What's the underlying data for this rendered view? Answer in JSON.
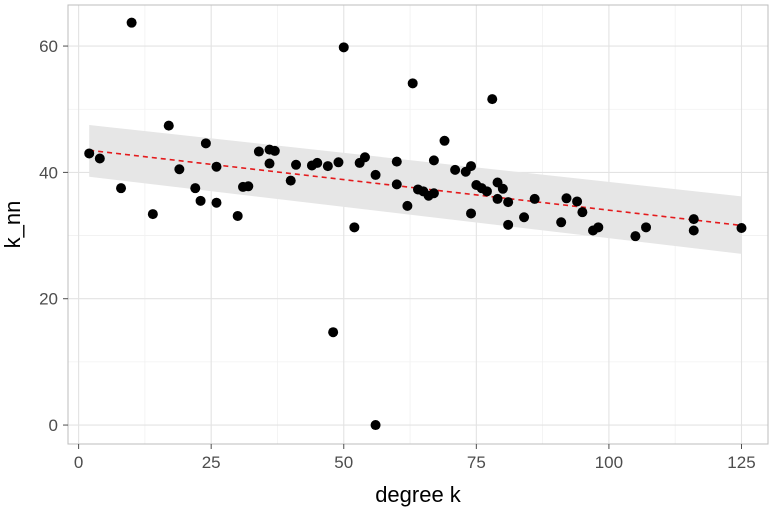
{
  "chart_data": {
    "type": "scatter",
    "title": "",
    "xlabel": "degree k",
    "ylabel": "k_nn",
    "xlim": [
      -2,
      130
    ],
    "ylim": [
      -3,
      66.5
    ],
    "x_ticks": [
      0,
      25,
      50,
      75,
      100,
      125
    ],
    "y_ticks": [
      0,
      20,
      40,
      60
    ],
    "grid": true,
    "series": [
      {
        "points": [
          [
            2,
            43.0
          ],
          [
            4,
            42.2
          ],
          [
            8,
            37.5
          ],
          [
            10,
            63.7
          ],
          [
            14,
            33.4
          ],
          [
            17,
            47.4
          ],
          [
            19,
            40.5
          ],
          [
            22,
            37.5
          ],
          [
            23,
            35.5
          ],
          [
            24,
            44.6
          ],
          [
            26,
            40.9
          ],
          [
            26,
            35.2
          ],
          [
            30,
            33.1
          ],
          [
            31,
            37.7
          ],
          [
            32,
            37.8
          ],
          [
            34,
            43.3
          ],
          [
            36,
            43.6
          ],
          [
            36,
            41.4
          ],
          [
            37,
            43.4
          ],
          [
            40,
            38.7
          ],
          [
            41,
            41.2
          ],
          [
            44,
            41.1
          ],
          [
            45,
            41.5
          ],
          [
            47,
            41.0
          ],
          [
            48,
            14.7
          ],
          [
            49,
            41.6
          ],
          [
            50,
            59.8
          ],
          [
            52,
            31.3
          ],
          [
            53,
            41.5
          ],
          [
            54,
            42.4
          ],
          [
            56,
            39.6
          ],
          [
            56,
            0.0
          ],
          [
            60,
            41.7
          ],
          [
            60,
            38.1
          ],
          [
            62,
            34.7
          ],
          [
            63,
            54.1
          ],
          [
            64,
            37.3
          ],
          [
            65,
            37.0
          ],
          [
            66,
            36.3
          ],
          [
            67,
            41.9
          ],
          [
            67,
            36.7
          ],
          [
            69,
            45.0
          ],
          [
            71,
            40.4
          ],
          [
            73,
            40.1
          ],
          [
            74,
            41.0
          ],
          [
            74,
            33.5
          ],
          [
            75,
            38.0
          ],
          [
            76,
            37.5
          ],
          [
            77,
            37.0
          ],
          [
            78,
            51.6
          ],
          [
            79,
            38.4
          ],
          [
            79,
            35.8
          ],
          [
            80,
            37.4
          ],
          [
            81,
            35.3
          ],
          [
            81,
            31.7
          ],
          [
            84,
            32.9
          ],
          [
            86,
            35.8
          ],
          [
            91,
            32.1
          ],
          [
            92,
            35.9
          ],
          [
            94,
            35.4
          ],
          [
            95,
            33.7
          ],
          [
            97,
            30.8
          ],
          [
            98,
            31.3
          ],
          [
            105,
            29.9
          ],
          [
            107,
            31.3
          ],
          [
            116,
            32.6
          ],
          [
            116,
            30.8
          ],
          [
            125,
            31.2
          ]
        ]
      }
    ],
    "trend_line": {
      "from": [
        2,
        43.5
      ],
      "to": [
        125,
        31.6
      ],
      "style": "dashed"
    },
    "confidence_band": {
      "upper": [
        [
          2,
          47.5
        ],
        [
          125,
          36.2
        ]
      ],
      "lower": [
        [
          2,
          39.3
        ],
        [
          125,
          27.1
        ]
      ]
    },
    "colors": {
      "points": "#000000",
      "trend_line": "#e41a1c",
      "band": "#e6e6e6",
      "grid_major": "#e3e3e3",
      "grid_minor": "#f1f1f1",
      "panel_border": "#bdbdbd"
    }
  }
}
